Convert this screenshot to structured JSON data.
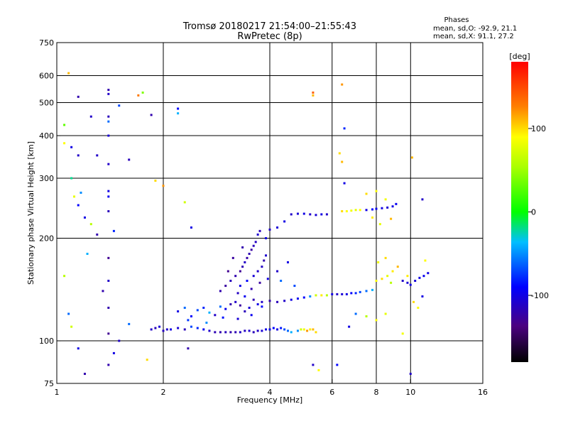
{
  "chart_data": {
    "type": "scatter",
    "title": "Tromsø 20180217 21:54:00–21:55:43",
    "subtitle": "RwPretec (8p)",
    "stats": {
      "header": "Phases",
      "line_o": "mean, sd,O: -92.9, 21.1",
      "line_x": "mean, sd,X: 91.1, 27.2"
    },
    "xlabel": "Frequency [MHz]",
    "ylabel": "Stationary phase Virtual Height [km]",
    "x_scale": "log",
    "y_scale": "log",
    "xlim": [
      1,
      16
    ],
    "ylim": [
      75,
      750
    ],
    "x_ticks": [
      1,
      2,
      4,
      6,
      8,
      10,
      16
    ],
    "x_tick_labels": [
      "1",
      "2",
      "4",
      "6",
      "8",
      "10",
      "16"
    ],
    "y_ticks": [
      75,
      100,
      200,
      300,
      400,
      500,
      600,
      750
    ],
    "y_tick_labels": [
      "75",
      "100",
      "200",
      "300",
      "400",
      "500",
      "600",
      "750"
    ],
    "x_grid": [
      2,
      4,
      6,
      8,
      10
    ],
    "y_grid": [
      100,
      200,
      300,
      400,
      500,
      600
    ],
    "colorbar": {
      "label": "[deg]",
      "ticks": [
        100,
        0,
        -100
      ],
      "tick_labels": [
        "100",
        "0",
        "-100"
      ],
      "range": [
        -180,
        180
      ]
    },
    "series": [
      {
        "points": [
          [
            1.85,
            108,
            -110
          ],
          [
            1.9,
            109,
            -115
          ],
          [
            1.95,
            110,
            -105
          ],
          [
            2.0,
            107,
            -112
          ],
          [
            2.05,
            108,
            -108
          ],
          [
            2.1,
            108,
            -100
          ],
          [
            2.2,
            109,
            -105
          ],
          [
            2.3,
            108,
            -115
          ],
          [
            2.4,
            110,
            -70
          ],
          [
            2.5,
            109,
            -80
          ],
          [
            2.6,
            108,
            -95
          ],
          [
            2.7,
            107,
            -110
          ],
          [
            2.8,
            106,
            -118
          ],
          [
            2.9,
            106,
            -120
          ],
          [
            3.0,
            106,
            -115
          ],
          [
            3.1,
            106,
            -120
          ],
          [
            3.2,
            106,
            -118
          ],
          [
            3.3,
            106,
            -110
          ],
          [
            3.4,
            107,
            -112
          ],
          [
            3.5,
            107,
            -108
          ],
          [
            3.6,
            106,
            -115
          ],
          [
            3.7,
            107,
            -110
          ],
          [
            3.8,
            107,
            -105
          ],
          [
            3.9,
            108,
            -100
          ],
          [
            4.0,
            108,
            -95
          ],
          [
            4.1,
            109,
            -90
          ],
          [
            4.2,
            108,
            -100
          ],
          [
            4.3,
            109,
            -85
          ],
          [
            4.4,
            108,
            -70
          ],
          [
            4.5,
            107,
            -60
          ],
          [
            4.6,
            106,
            -40
          ],
          [
            4.8,
            107,
            -50
          ],
          [
            4.9,
            108,
            70
          ],
          [
            5.0,
            108,
            85
          ],
          [
            5.1,
            107,
            120
          ],
          [
            5.2,
            108,
            95
          ],
          [
            5.3,
            108,
            110
          ],
          [
            5.4,
            106,
            100
          ],
          [
            2.2,
            122,
            -100
          ],
          [
            2.3,
            125,
            -60
          ],
          [
            2.4,
            118,
            -90
          ],
          [
            2.5,
            123,
            -70
          ],
          [
            2.6,
            125,
            -80
          ],
          [
            2.7,
            121,
            -40
          ],
          [
            2.8,
            119,
            -110
          ],
          [
            2.9,
            126,
            -60
          ],
          [
            3.0,
            124,
            -95
          ],
          [
            3.1,
            128,
            -120
          ],
          [
            3.2,
            130,
            -110
          ],
          [
            3.3,
            127,
            -125
          ],
          [
            3.4,
            122,
            -115
          ],
          [
            3.5,
            125,
            -105
          ],
          [
            3.6,
            132,
            -118
          ],
          [
            3.7,
            128,
            -100
          ],
          [
            3.8,
            126,
            -90
          ],
          [
            2.35,
            115,
            -75
          ],
          [
            2.65,
            113,
            -50
          ],
          [
            2.95,
            117,
            -85
          ],
          [
            3.25,
            116,
            -105
          ],
          [
            3.55,
            119,
            -95
          ],
          [
            2.9,
            140,
            -120
          ],
          [
            3.0,
            145,
            -125
          ],
          [
            3.1,
            150,
            -115
          ],
          [
            3.2,
            155,
            -120
          ],
          [
            3.3,
            160,
            -128
          ],
          [
            3.35,
            165,
            -118
          ],
          [
            3.4,
            170,
            -110
          ],
          [
            3.45,
            175,
            -122
          ],
          [
            3.5,
            180,
            -118
          ],
          [
            3.55,
            185,
            -125
          ],
          [
            3.6,
            190,
            -115
          ],
          [
            3.65,
            195,
            -112
          ],
          [
            3.7,
            205,
            -108
          ],
          [
            3.75,
            210,
            -115
          ],
          [
            3.3,
            145,
            -100
          ],
          [
            3.45,
            150,
            -90
          ],
          [
            3.6,
            155,
            -105
          ],
          [
            3.7,
            160,
            -110
          ],
          [
            3.8,
            165,
            -112
          ],
          [
            3.85,
            172,
            -120
          ],
          [
            3.9,
            178,
            -108
          ],
          [
            3.25,
            138,
            -112
          ],
          [
            3.4,
            135,
            -95
          ],
          [
            3.55,
            142,
            -120
          ],
          [
            3.75,
            148,
            -125
          ],
          [
            3.95,
            152,
            -100
          ],
          [
            3.05,
            160,
            -130
          ],
          [
            3.15,
            175,
            -125
          ],
          [
            3.35,
            188,
            -120
          ],
          [
            3.8,
            130,
            -110
          ],
          [
            4.0,
            131,
            -120
          ],
          [
            4.2,
            130,
            -115
          ],
          [
            4.4,
            131,
            -110
          ],
          [
            4.6,
            132,
            -100
          ],
          [
            4.8,
            133,
            -95
          ],
          [
            5.0,
            134,
            -90
          ],
          [
            5.2,
            135,
            -50
          ],
          [
            5.4,
            136,
            70
          ],
          [
            5.6,
            136,
            95
          ],
          [
            5.8,
            136,
            60
          ],
          [
            6.0,
            137,
            -100
          ],
          [
            6.2,
            137,
            -110
          ],
          [
            6.4,
            137,
            -105
          ],
          [
            6.6,
            137,
            -100
          ],
          [
            6.8,
            138,
            -90
          ],
          [
            7.0,
            138,
            -80
          ],
          [
            7.2,
            139,
            -70
          ],
          [
            7.5,
            140,
            -60
          ],
          [
            7.8,
            141,
            -40
          ],
          [
            9.5,
            150,
            -110
          ],
          [
            9.8,
            148,
            -105
          ],
          [
            10.0,
            146,
            -100
          ],
          [
            10.3,
            150,
            -105
          ],
          [
            10.6,
            153,
            -100
          ],
          [
            10.9,
            155,
            -95
          ],
          [
            11.2,
            158,
            -100
          ],
          [
            8.0,
            150,
            90
          ],
          [
            8.3,
            152,
            100
          ],
          [
            8.6,
            155,
            80
          ],
          [
            8.9,
            160,
            95
          ],
          [
            9.2,
            165,
            110
          ],
          [
            8.1,
            170,
            85
          ],
          [
            8.5,
            175,
            100
          ],
          [
            8.8,
            148,
            60
          ],
          [
            4.0,
            212,
            -110
          ],
          [
            4.2,
            215,
            -105
          ],
          [
            4.4,
            224,
            -100
          ],
          [
            4.6,
            235,
            -110
          ],
          [
            4.8,
            236,
            -105
          ],
          [
            5.0,
            236,
            -100
          ],
          [
            5.2,
            235,
            -110
          ],
          [
            5.4,
            234,
            -105
          ],
          [
            5.6,
            235,
            -100
          ],
          [
            5.8,
            235,
            -110
          ],
          [
            6.4,
            240,
            100
          ],
          [
            6.6,
            240,
            90
          ],
          [
            6.8,
            241,
            85
          ],
          [
            7.0,
            242,
            80
          ],
          [
            7.2,
            242,
            90
          ],
          [
            7.5,
            242,
            -100
          ],
          [
            7.8,
            243,
            -90
          ],
          [
            8.0,
            244,
            -95
          ],
          [
            8.3,
            245,
            -100
          ],
          [
            8.6,
            246,
            -105
          ],
          [
            8.9,
            248,
            -100
          ],
          [
            9.1,
            252,
            -95
          ],
          [
            7.5,
            270,
            100
          ],
          [
            8.0,
            275,
            90
          ],
          [
            8.5,
            260,
            85
          ],
          [
            7.8,
            230,
            95
          ],
          [
            8.2,
            220,
            80
          ],
          [
            8.8,
            228,
            110
          ],
          [
            1.05,
            430,
            30
          ],
          [
            1.05,
            380,
            90
          ],
          [
            1.1,
            370,
            -100
          ],
          [
            1.15,
            350,
            -110
          ],
          [
            1.15,
            250,
            -90
          ],
          [
            1.2,
            230,
            -100
          ],
          [
            1.3,
            205,
            -120
          ],
          [
            1.4,
            545,
            -120
          ],
          [
            1.4,
            530,
            -110
          ],
          [
            1.4,
            455,
            -115
          ],
          [
            1.4,
            440,
            -60
          ],
          [
            1.4,
            400,
            -105
          ],
          [
            1.4,
            330,
            -110
          ],
          [
            1.4,
            275,
            -100
          ],
          [
            1.4,
            265,
            -95
          ],
          [
            1.4,
            240,
            -115
          ],
          [
            1.4,
            175,
            -130
          ],
          [
            1.4,
            150,
            -110
          ],
          [
            1.4,
            125,
            -120
          ],
          [
            1.45,
            210,
            -80
          ],
          [
            1.5,
            490,
            -70
          ],
          [
            1.6,
            340,
            -115
          ],
          [
            1.7,
            525,
            130
          ],
          [
            1.75,
            535,
            40
          ],
          [
            1.85,
            460,
            -120
          ],
          [
            2.2,
            480,
            -90
          ],
          [
            2.2,
            465,
            -40
          ],
          [
            2.3,
            255,
            70
          ],
          [
            2.4,
            215,
            -100
          ],
          [
            1.9,
            295,
            100
          ],
          [
            2.0,
            285,
            120
          ],
          [
            1.15,
            520,
            -120
          ],
          [
            1.25,
            455,
            -110
          ],
          [
            1.08,
            610,
            110
          ],
          [
            1.12,
            265,
            80
          ],
          [
            1.17,
            272,
            -50
          ],
          [
            1.1,
            300,
            -20
          ],
          [
            1.22,
            180,
            -40
          ],
          [
            1.35,
            140,
            -120
          ],
          [
            1.25,
            220,
            60
          ],
          [
            1.05,
            155,
            60
          ],
          [
            1.08,
            120,
            -60
          ],
          [
            1.1,
            110,
            70
          ],
          [
            1.15,
            95,
            -100
          ],
          [
            1.2,
            80,
            -120
          ],
          [
            1.4,
            105,
            -130
          ],
          [
            1.4,
            85,
            -120
          ],
          [
            1.45,
            92,
            -100
          ],
          [
            1.5,
            100,
            -110
          ],
          [
            1.6,
            112,
            -60
          ],
          [
            1.3,
            350,
            -110
          ],
          [
            5.3,
            525,
            110
          ],
          [
            5.3,
            535,
            140
          ],
          [
            6.4,
            565,
            120
          ],
          [
            6.5,
            420,
            -80
          ],
          [
            6.3,
            355,
            100
          ],
          [
            6.4,
            335,
            110
          ],
          [
            6.5,
            290,
            -100
          ],
          [
            10.1,
            345,
            110
          ],
          [
            10.8,
            260,
            -110
          ],
          [
            10.0,
            80,
            -110
          ],
          [
            5.5,
            82,
            90
          ],
          [
            5.3,
            85,
            -110
          ],
          [
            6.2,
            85,
            -90
          ],
          [
            2.35,
            95,
            -120
          ],
          [
            1.8,
            88,
            100
          ],
          [
            8.0,
            115,
            90
          ],
          [
            8.5,
            120,
            80
          ],
          [
            9.5,
            105,
            85
          ],
          [
            6.7,
            110,
            -100
          ],
          [
            7.0,
            120,
            -60
          ],
          [
            7.5,
            118,
            60
          ],
          [
            10.2,
            130,
            100
          ],
          [
            10.5,
            125,
            90
          ],
          [
            11.0,
            172,
            90
          ],
          [
            10.8,
            135,
            -100
          ],
          [
            9.8,
            155,
            95
          ],
          [
            4.5,
            170,
            -100
          ],
          [
            4.2,
            160,
            -110
          ],
          [
            3.9,
            200,
            -100
          ],
          [
            4.3,
            150,
            -60
          ],
          [
            4.7,
            145,
            -70
          ]
        ]
      }
    ]
  }
}
